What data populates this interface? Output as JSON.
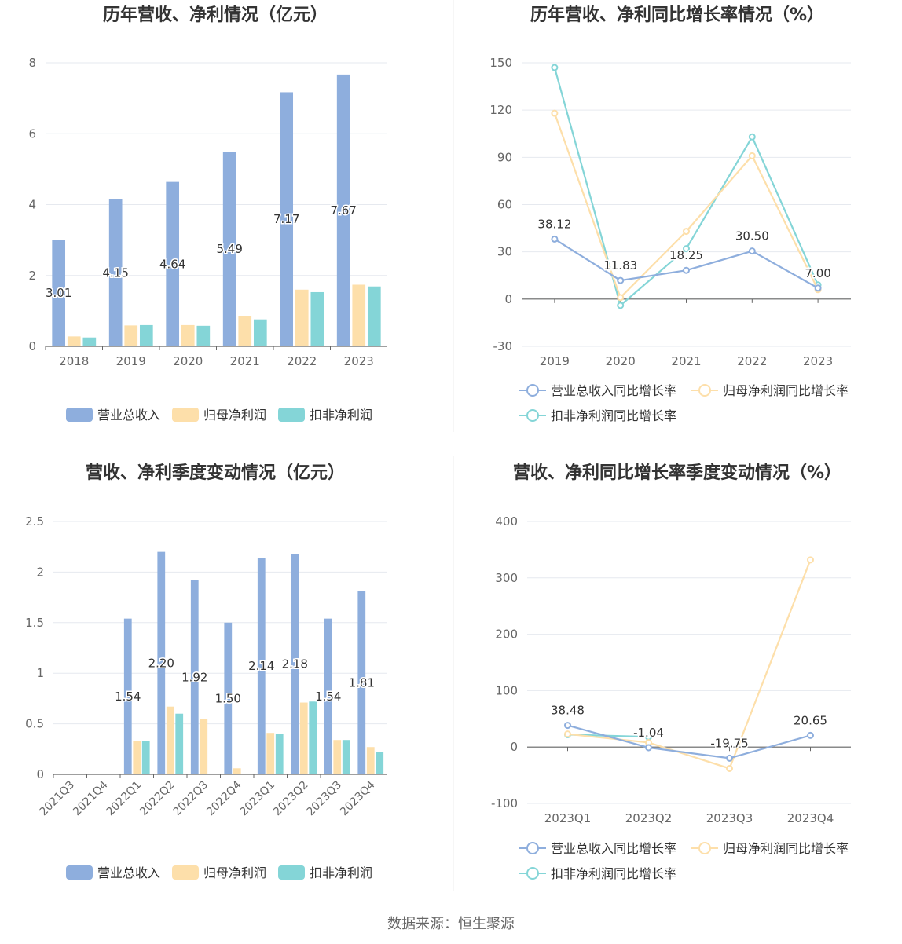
{
  "colors": {
    "revenue": "#8eaedd",
    "net_profit": "#fddfaa",
    "deducted_profit": "#84d5d7",
    "grid": "#e6e9ef",
    "axis": "#666666",
    "text": "#333333"
  },
  "source_label": "数据来源：恒生聚源",
  "chart_data": [
    {
      "type": "bar",
      "title": "历年营收、净利情况（亿元）",
      "categories": [
        "2018",
        "2019",
        "2020",
        "2021",
        "2022",
        "2023"
      ],
      "ylim": [
        0,
        8
      ],
      "yticks": [
        "0",
        "2",
        "4",
        "6",
        "8"
      ],
      "series": [
        {
          "name": "营业总收入",
          "values": [
            3.01,
            4.15,
            4.64,
            5.49,
            7.17,
            7.67
          ],
          "labels": [
            "3.01",
            "4.15",
            "4.64",
            "5.49",
            "7.17",
            "7.67"
          ]
        },
        {
          "name": "归母净利润",
          "values": [
            0.28,
            0.59,
            0.6,
            0.85,
            1.6,
            1.74
          ]
        },
        {
          "name": "扣非净利润",
          "values": [
            0.25,
            0.6,
            0.58,
            0.76,
            1.53,
            1.69
          ]
        }
      ],
      "legend_position": "bottom"
    },
    {
      "type": "line",
      "title": "历年营收、净利同比增长率情况（%）",
      "categories": [
        "2019",
        "2020",
        "2021",
        "2022",
        "2023"
      ],
      "ylim": [
        -30,
        150
      ],
      "yticks": [
        "-30",
        "0",
        "30",
        "60",
        "90",
        "120",
        "150"
      ],
      "series": [
        {
          "name": "营业总收入同比增长率",
          "values": [
            38.12,
            11.83,
            18.25,
            30.5,
            7.0
          ],
          "labels": [
            "38.12",
            "11.83",
            "18.25",
            "30.50",
            "7.00"
          ]
        },
        {
          "name": "归母净利润同比增长率",
          "values": [
            118,
            1,
            43,
            91,
            6
          ]
        },
        {
          "name": "扣非净利润同比增长率",
          "values": [
            147,
            -4,
            32,
            103,
            9
          ]
        }
      ],
      "legend_position": "bottom"
    },
    {
      "type": "bar",
      "title": "营收、净利季度变动情况（亿元）",
      "categories": [
        "2021Q3",
        "2021Q4",
        "2022Q1",
        "2022Q2",
        "2022Q3",
        "2022Q4",
        "2023Q1",
        "2023Q2",
        "2023Q3",
        "2023Q4"
      ],
      "ylim": [
        0,
        2.5
      ],
      "yticks": [
        "0",
        "0.5",
        "1",
        "1.5",
        "2",
        "2.5"
      ],
      "series": [
        {
          "name": "营业总收入",
          "values": [
            null,
            null,
            1.54,
            2.2,
            1.92,
            1.5,
            2.14,
            2.18,
            1.54,
            1.81
          ],
          "labels": [
            "",
            "",
            "1.54",
            "2.20",
            "1.92",
            "1.50",
            "2.14",
            "2.18",
            "1.54",
            "1.81"
          ]
        },
        {
          "name": "归母净利润",
          "values": [
            null,
            null,
            0.33,
            0.67,
            0.55,
            0.06,
            0.41,
            0.71,
            0.34,
            0.27
          ]
        },
        {
          "name": "扣非净利润",
          "values": [
            null,
            null,
            0.33,
            0.6,
            null,
            null,
            0.4,
            0.72,
            0.34,
            0.22
          ]
        }
      ],
      "legend_position": "bottom"
    },
    {
      "type": "line",
      "title": "营收、净利同比增长率季度变动情况（%）",
      "categories": [
        "2023Q1",
        "2023Q2",
        "2023Q3",
        "2023Q4"
      ],
      "ylim": [
        -100,
        400
      ],
      "yticks": [
        "-100",
        "0",
        "100",
        "200",
        "300",
        "400"
      ],
      "series": [
        {
          "name": "营业总收入同比增长率",
          "values": [
            38.48,
            -1.04,
            -19.75,
            20.65
          ],
          "labels": [
            "38.48",
            "-1.04",
            "-19.75",
            "20.65"
          ]
        },
        {
          "name": "归母净利润同比增长率",
          "values": [
            23,
            8,
            -38,
            332
          ]
        },
        {
          "name": "扣非净利润同比增长率",
          "values": [
            22,
            18,
            null,
            null
          ]
        }
      ],
      "legend_position": "bottom"
    }
  ]
}
